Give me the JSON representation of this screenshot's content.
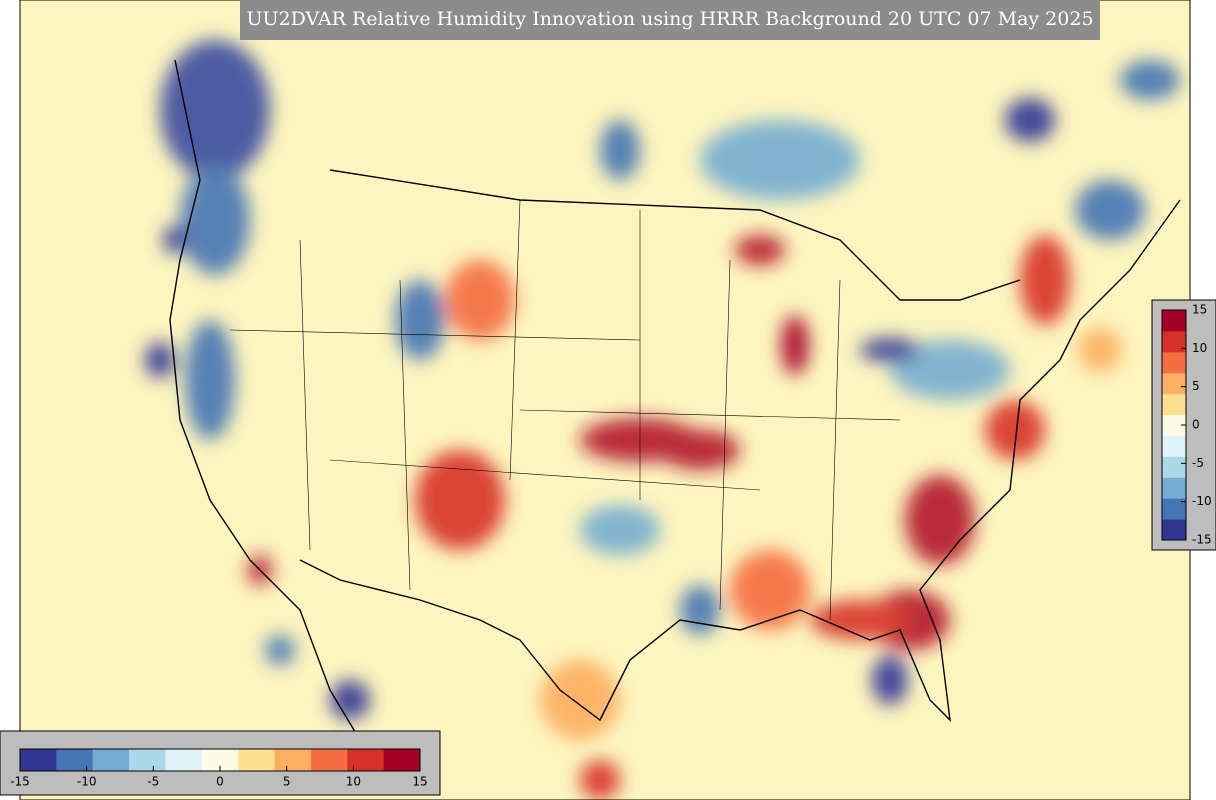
{
  "title": "UU2DVAR Relative Humidity Innovation using HRRR Background 20 UTC 07 May 2025",
  "colorbar": {
    "range": [
      -15,
      15
    ],
    "ticks": [
      -15,
      -10,
      -5,
      0,
      5,
      10,
      15
    ],
    "colors": [
      "#313695",
      "#4575b4",
      "#74add1",
      "#abd9e9",
      "#e0f3f8",
      "#fbfbe6",
      "#fee090",
      "#fdae61",
      "#f46d43",
      "#d73027",
      "#a50026"
    ]
  }
}
